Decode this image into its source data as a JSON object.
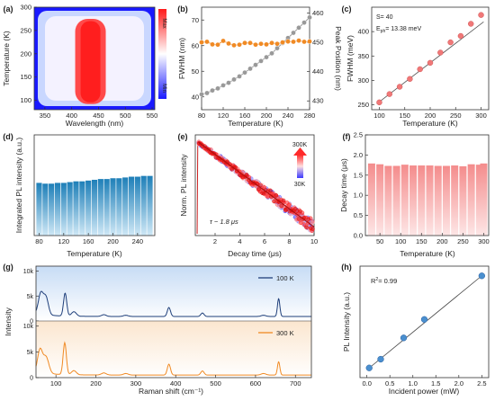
{
  "chart_data": [
    {
      "id": "a",
      "type": "heatmap",
      "panel_label": "(a)",
      "xlabel": "Wavelength (nm)",
      "ylabel": "Temperature (K)",
      "xlim": [
        330,
        555
      ],
      "ylim": [
        80,
        300
      ],
      "xticks": [
        350,
        400,
        450,
        500,
        550
      ],
      "yticks": [
        100,
        150,
        200,
        250,
        300
      ],
      "peak_wavelength": 435,
      "colorbar": {
        "max_label": "Max",
        "min_label": "Min",
        "colors": [
          "#1a1aff",
          "#ffffff",
          "#ff1a1a"
        ]
      }
    },
    {
      "id": "b",
      "type": "line",
      "panel_label": "(b)",
      "xlabel": "Temperature (K)",
      "ylabel": "FWHM (nm)",
      "ylabel_right": "Peak Position (nm)",
      "xlim": [
        80,
        280
      ],
      "ylim": [
        35,
        75
      ],
      "ylim_right": [
        427,
        462
      ],
      "xticks": [
        80,
        120,
        160,
        200,
        240,
        280
      ],
      "yticks": [
        40,
        50,
        60,
        70
      ],
      "yticks_right": [
        430,
        440,
        450,
        460
      ],
      "series": [
        {
          "axis": "left",
          "color": "#999999",
          "x": [
            80,
            90,
            100,
            110,
            120,
            130,
            140,
            150,
            160,
            170,
            180,
            190,
            200,
            210,
            220,
            230,
            240,
            250,
            260,
            270,
            280
          ],
          "values": [
            41,
            41.5,
            42.5,
            43.3,
            44.5,
            45.5,
            46.8,
            48,
            49.5,
            51,
            52.5,
            54,
            55.5,
            57,
            59,
            61,
            63,
            65,
            67,
            69,
            71
          ]
        },
        {
          "axis": "right",
          "color": "#f08a24",
          "x": [
            80,
            90,
            100,
            110,
            120,
            130,
            140,
            150,
            160,
            170,
            180,
            190,
            200,
            210,
            220,
            230,
            240,
            250,
            260,
            270,
            280
          ],
          "values": [
            450,
            450.2,
            449.3,
            449.2,
            450.5,
            449.6,
            449,
            449.2,
            449.8,
            449.8,
            449.2,
            449.5,
            449.3,
            449.8,
            449.5,
            450,
            450.3,
            450.2,
            450.6,
            450.2,
            450.3
          ]
        }
      ]
    },
    {
      "id": "c",
      "type": "scatter",
      "panel_label": "(c)",
      "xlabel": "Temperature (K)",
      "ylabel": "FWHM (meV)",
      "xlim": [
        85,
        315
      ],
      "ylim": [
        240,
        450
      ],
      "xticks": [
        100,
        150,
        200,
        250,
        300
      ],
      "yticks": [
        250,
        300,
        350,
        400
      ],
      "annotation_s": "S= 40",
      "annotation_eph_prefix": "E",
      "annotation_eph_sub": "ph",
      "annotation_eph_value": "= 13.38 meV",
      "x": [
        100,
        120,
        140,
        160,
        180,
        200,
        220,
        240,
        260,
        280,
        300
      ],
      "values": [
        255,
        272,
        287,
        303,
        323,
        336,
        357,
        378,
        391,
        416,
        434
      ],
      "fit": {
        "x": [
          95,
          305
        ],
        "y": [
          252,
          420
        ]
      }
    },
    {
      "id": "d",
      "type": "bar",
      "panel_label": "(d)",
      "xlabel": "Temperature (K)",
      "ylabel": "Integrated PL intensity (a.u.)",
      "xticks": [
        80,
        120,
        160,
        200,
        240
      ],
      "categories": [
        80,
        90,
        100,
        110,
        120,
        130,
        140,
        150,
        160,
        170,
        180,
        190,
        200,
        210,
        220,
        230,
        240,
        250,
        260
      ],
      "values": [
        0.68,
        0.67,
        0.67,
        0.68,
        0.68,
        0.69,
        0.7,
        0.7,
        0.71,
        0.72,
        0.73,
        0.73,
        0.74,
        0.74,
        0.75,
        0.76,
        0.76,
        0.77,
        0.77
      ],
      "ylim": [
        0,
        1.3
      ]
    },
    {
      "id": "e",
      "type": "scatter",
      "panel_label": "(e)",
      "xlabel": "Decay time (μs)",
      "ylabel": "Norm. PL intensity",
      "xlim": [
        0.4,
        10
      ],
      "xticks": [
        2,
        4,
        6,
        8,
        10
      ],
      "ylog": true,
      "tau_label": "τ ~ 1.8  μs",
      "legend_high": "300K",
      "legend_low": "30K",
      "decay_lifetime": 1.8
    },
    {
      "id": "f",
      "type": "bar",
      "panel_label": "(f)",
      "xlabel": "Temperature (K)",
      "ylabel": "Decay time (μs)",
      "xlim": [
        15,
        312
      ],
      "ylim": [
        0,
        2.5
      ],
      "xticks": [
        50,
        100,
        150,
        200,
        250,
        300
      ],
      "yticks": [
        0.0,
        0.5,
        1.0,
        1.5,
        2.0,
        2.5
      ],
      "ytick_labels": [
        "0.0",
        "0.5",
        "1.0",
        "1.5",
        "2.0",
        "2.5"
      ],
      "categories": [
        30,
        50,
        70,
        90,
        110,
        130,
        150,
        170,
        190,
        210,
        230,
        250,
        270,
        290,
        300
      ],
      "values": [
        1.79,
        1.77,
        1.73,
        1.73,
        1.76,
        1.74,
        1.74,
        1.74,
        1.73,
        1.73,
        1.74,
        1.72,
        1.77,
        1.76,
        1.79
      ]
    },
    {
      "id": "g",
      "type": "line",
      "panel_label": "(g)",
      "xlabel": "Raman shift (cm⁻¹)",
      "ylabel": "Intensity",
      "xlim": [
        50,
        740
      ],
      "xticks": [
        100,
        200,
        300,
        400,
        500,
        600,
        700
      ],
      "top_yticks": [
        0,
        5000,
        10000
      ],
      "top_ytick_labels": [
        "0",
        "5k",
        "10k"
      ],
      "bottom_yticks": [
        0,
        5000,
        10000
      ],
      "bottom_ytick_labels": [
        "0",
        "5k",
        "10k"
      ],
      "series": [
        {
          "name": "100 K",
          "color": "#1f3f7a",
          "peaks": [
            [
              62,
              4200,
              6
            ],
            [
              75,
              3500,
              6
            ],
            [
              123,
              4600,
              4
            ],
            [
              145,
              900,
              6
            ],
            [
              220,
              350,
              6
            ],
            [
              275,
              250,
              6
            ],
            [
              383,
              1800,
              4
            ],
            [
              467,
              700,
              4
            ],
            [
              620,
              250,
              6
            ],
            [
              658,
              3600,
              3
            ]
          ],
          "baseline": 900
        },
        {
          "name": "300 K",
          "color": "#f08a24",
          "peaks": [
            [
              60,
              4400,
              6
            ],
            [
              75,
              3200,
              7
            ],
            [
              122,
              6200,
              4
            ],
            [
              145,
              800,
              6
            ],
            [
              220,
              400,
              6
            ],
            [
              275,
              300,
              6
            ],
            [
              383,
              2100,
              4
            ],
            [
              467,
              800,
              4
            ],
            [
              620,
              300,
              6
            ],
            [
              658,
              2600,
              3
            ]
          ],
          "baseline": 500
        }
      ]
    },
    {
      "id": "h",
      "type": "scatter",
      "panel_label": "(h)",
      "xlabel": "Incident power (mW)",
      "ylabel": "PL Intensity (a.u.)",
      "xlim": [
        -0.15,
        2.65
      ],
      "ylim": [
        -0.05,
        1.1
      ],
      "xticks": [
        0.0,
        0.5,
        1.0,
        1.5,
        2.0,
        2.5
      ],
      "xtick_labels": [
        "0.0",
        "0.5",
        "1.0",
        "1.5",
        "2.0",
        "2.5"
      ],
      "r2_label": "R",
      "r2_sup": "2",
      "r2_value": "= 0.99",
      "x": [
        0.05,
        0.3,
        0.8,
        1.25,
        2.5
      ],
      "values": [
        0.05,
        0.14,
        0.36,
        0.55,
        1.0
      ],
      "fit": {
        "x": [
          0.0,
          2.55
        ],
        "y": [
          0.03,
          1.02
        ]
      }
    }
  ]
}
